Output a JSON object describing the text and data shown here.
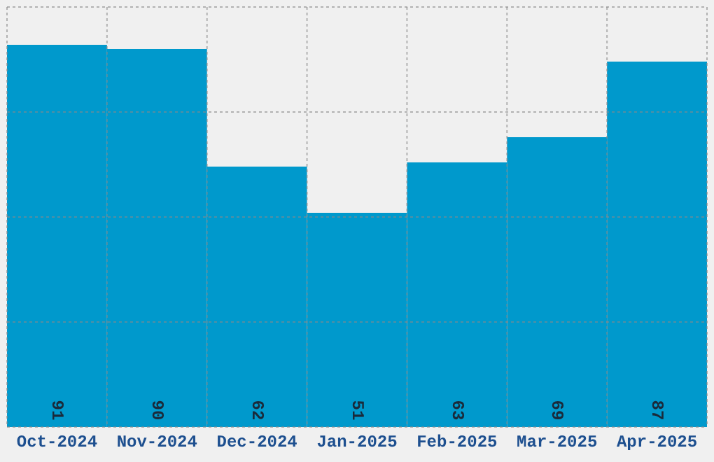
{
  "chart_data": {
    "type": "bar",
    "categories": [
      "Oct-2024",
      "Nov-2024",
      "Dec-2024",
      "Jan-2025",
      "Feb-2025",
      "Mar-2025",
      "Apr-2025"
    ],
    "values": [
      91,
      90,
      62,
      51,
      63,
      69,
      87
    ],
    "color": "#0099cc",
    "ylim": [
      0,
      100
    ],
    "yticks": [
      {
        "value": 0,
        "label": null
      },
      {
        "value": 25,
        "label": null
      },
      {
        "value": 50,
        "label": null
      },
      {
        "value": 75,
        "label": null
      },
      {
        "value": 100,
        "label": null
      }
    ],
    "tick_labels": "x",
    "grid": true,
    "data_labels": true
  }
}
